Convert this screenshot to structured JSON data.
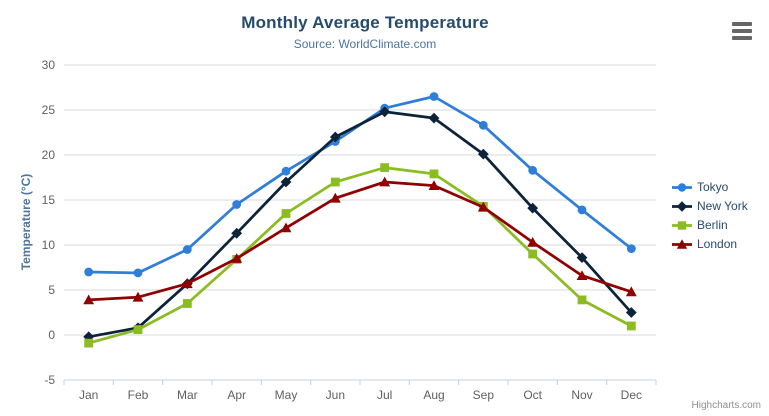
{
  "header": {
    "title": "Monthly Average Temperature",
    "subtitle": "Source: WorldClimate.com",
    "menu_icon": "hamburger-icon"
  },
  "credits": "Highcharts.com",
  "chart_data": {
    "type": "line",
    "title": "Monthly Average Temperature",
    "subtitle": "Source: WorldClimate.com",
    "categories": [
      "Jan",
      "Feb",
      "Mar",
      "Apr",
      "May",
      "Jun",
      "Jul",
      "Aug",
      "Sep",
      "Oct",
      "Nov",
      "Dec"
    ],
    "series": [
      {
        "name": "Tokyo",
        "color": "#2f7ed8",
        "marker": "circle",
        "values": [
          7.0,
          6.9,
          9.5,
          14.5,
          18.2,
          21.5,
          25.2,
          26.5,
          23.3,
          18.3,
          13.9,
          9.6
        ]
      },
      {
        "name": "New York",
        "color": "#0d233a",
        "marker": "diamond",
        "values": [
          -0.2,
          0.8,
          5.7,
          11.3,
          17.0,
          22.0,
          24.8,
          24.1,
          20.1,
          14.1,
          8.6,
          2.5
        ]
      },
      {
        "name": "Berlin",
        "color": "#8bbc21",
        "marker": "square",
        "values": [
          -0.9,
          0.6,
          3.5,
          8.4,
          13.5,
          17.0,
          18.6,
          17.9,
          14.3,
          9.0,
          3.9,
          1.0
        ]
      },
      {
        "name": "London",
        "color": "#910000",
        "marker": "triangle",
        "values": [
          3.9,
          4.2,
          5.7,
          8.5,
          11.9,
          15.2,
          17.0,
          16.6,
          14.2,
          10.3,
          6.6,
          4.8
        ]
      }
    ],
    "xlabel": "",
    "ylabel": "Temperature (°C)",
    "ylim": [
      -5,
      30
    ],
    "ytick_step": 5,
    "grid": true,
    "legend_position": "right",
    "grid_color": "#d8d8d8",
    "axis_line_color": "#c0d0e0",
    "label_color": "#606060"
  }
}
